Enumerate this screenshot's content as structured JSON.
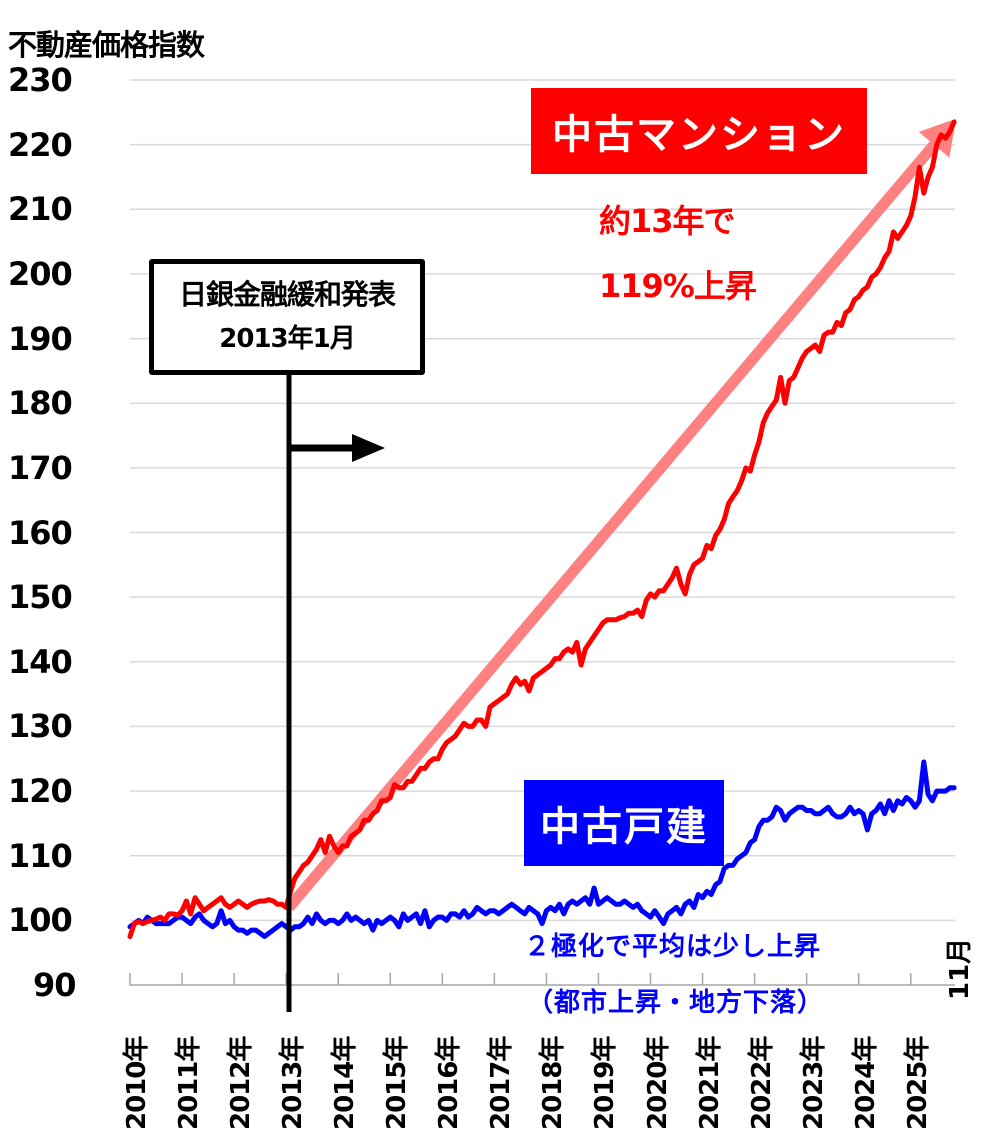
{
  "chart_data": {
    "type": "line",
    "title": "",
    "ylabel": "不動産価格指数",
    "xlabel": "",
    "ylim": [
      90,
      230
    ],
    "yticks": [
      230,
      220,
      210,
      200,
      190,
      180,
      170,
      160,
      150,
      140,
      130,
      120,
      110,
      100,
      90
    ],
    "xticks": [
      "2010年",
      "2011年",
      "2012年",
      "2013年",
      "2014年",
      "2015年",
      "2016年",
      "2017年",
      "2018年",
      "2019年",
      "2020年",
      "2021年",
      "2022年",
      "2023年",
      "2024年",
      "2025年"
    ],
    "x_end_label": "11月",
    "grid": true,
    "legend": "inline-badges",
    "x_frequency": "monthly, Jan 2010 – Nov 2025",
    "series": [
      {
        "name": "中古マンション",
        "color": "#ff0000",
        "values_by_year": {
          "2010": [
            97.5,
            99.5,
            99.8,
            99.5,
            99.8,
            100.0,
            100.2,
            100.5,
            100.0,
            101.0,
            101.0,
            100.8
          ],
          "2011": [
            101.5,
            103.0,
            101.0,
            103.5,
            102.5,
            101.5,
            102.0,
            102.5,
            103.0,
            103.5,
            102.5,
            102.0
          ],
          "2012": [
            102.5,
            103.0,
            102.5,
            102.0,
            102.5,
            102.8,
            103.0,
            103.0,
            103.2,
            103.0,
            102.5,
            102.5
          ],
          "2013": [
            102.0,
            104.5,
            106.5,
            107.5,
            108.5,
            109.0,
            110.0,
            111.0,
            112.5,
            110.5,
            113.0,
            111.5
          ],
          "2014": [
            110.5,
            111.5,
            111.5,
            113.0,
            113.5,
            114.0,
            115.5,
            115.5,
            116.5,
            117.0,
            118.5,
            118.5
          ],
          "2015": [
            119.0,
            121.0,
            120.5,
            120.5,
            121.5,
            121.5,
            122.5,
            123.5,
            123.5,
            124.5,
            125.0,
            125.0
          ],
          "2016": [
            126.5,
            127.5,
            128.0,
            128.5,
            129.5,
            130.5,
            130.0,
            130.0,
            131.0,
            131.0,
            130.0,
            133.0
          ],
          "2017": [
            133.5,
            134.0,
            134.5,
            135.0,
            136.5,
            137.5,
            136.5,
            137.0,
            135.5,
            137.5,
            138.0,
            138.5
          ],
          "2018": [
            139.0,
            139.5,
            140.5,
            140.5,
            141.5,
            142.0,
            141.5,
            143.0,
            139.5,
            142.0,
            143.0,
            144.0
          ],
          "2019": [
            145.0,
            146.0,
            146.5,
            146.5,
            146.5,
            146.8,
            147.0,
            147.5,
            147.5,
            148.0,
            147.0,
            149.5
          ],
          "2020": [
            150.5,
            150.0,
            151.0,
            151.0,
            152.0,
            153.0,
            154.5,
            152.0,
            150.5,
            153.5,
            155.0,
            155.5
          ],
          "2021": [
            156.0,
            158.0,
            157.5,
            159.5,
            160.5,
            162.0,
            164.5,
            165.5,
            166.5,
            168.0,
            170.0,
            169.5
          ],
          "2022": [
            172.0,
            174.0,
            177.0,
            178.5,
            179.5,
            180.5,
            184.0,
            180.0,
            183.5,
            184.0,
            185.5,
            187.0
          ],
          "2023": [
            188.0,
            188.5,
            189.0,
            188.0,
            190.5,
            191.0,
            191.0,
            192.5,
            192.0,
            194.0,
            194.5,
            196.0
          ],
          "2024": [
            196.5,
            197.5,
            198.0,
            199.5,
            200.0,
            201.0,
            202.5,
            203.5,
            206.5,
            205.5,
            206.5,
            207.5
          ],
          "2025": [
            209.0,
            212.0,
            216.5,
            212.5,
            215.0,
            216.5,
            220.0,
            221.5,
            221.0,
            222.0,
            223.5
          ]
        },
        "annotation": {
          "badge": "中古マンション",
          "text_line1": "約13年で",
          "text_line2": "119%上昇",
          "trend_arrow": {
            "from": [
              "2013-01",
              102
            ],
            "to": [
              "2025-11",
              224
            ],
            "color": "#ff8080"
          }
        }
      },
      {
        "name": "中古戸建",
        "color": "#0000ff",
        "values_by_year": {
          "2010": [
            99.0,
            99.5,
            100.0,
            99.5,
            100.5,
            100.0,
            99.5,
            99.5,
            99.5,
            99.5,
            100.0,
            100.5
          ],
          "2011": [
            100.5,
            100.0,
            99.5,
            100.5,
            101.0,
            100.0,
            99.5,
            99.0,
            99.5,
            101.5,
            99.5,
            100.0
          ],
          "2012": [
            99.0,
            98.5,
            98.5,
            98.0,
            98.5,
            98.5,
            98.0,
            97.5,
            98.0,
            98.5,
            99.0,
            99.5
          ],
          "2013": [
            99.0,
            98.5,
            99.0,
            99.0,
            99.5,
            100.5,
            99.5,
            101.0,
            100.0,
            99.5,
            100.0,
            100.0
          ],
          "2014": [
            99.5,
            100.0,
            101.0,
            100.0,
            100.5,
            100.0,
            99.5,
            100.0,
            98.5,
            100.0,
            99.5,
            100.0
          ],
          "2015": [
            100.5,
            100.0,
            99.0,
            101.0,
            100.0,
            100.5,
            101.0,
            99.5,
            101.5,
            99.0,
            100.0,
            100.5
          ],
          "2016": [
            100.5,
            100.0,
            101.0,
            101.0,
            100.5,
            101.5,
            100.5,
            101.0,
            102.0,
            101.5,
            101.0,
            101.5
          ],
          "2017": [
            101.5,
            101.0,
            101.5,
            102.0,
            102.5,
            102.0,
            101.5,
            101.0,
            102.0,
            101.5,
            101.0,
            99.5
          ],
          "2018": [
            101.5,
            102.0,
            101.5,
            102.5,
            101.0,
            102.5,
            103.0,
            102.5,
            103.0,
            103.5,
            102.5,
            105.0
          ],
          "2019": [
            102.5,
            103.0,
            103.5,
            103.0,
            102.5,
            102.5,
            103.0,
            102.5,
            102.0,
            102.5,
            101.5,
            101.0
          ],
          "2020": [
            100.5,
            101.5,
            100.5,
            99.5,
            101.0,
            101.5,
            102.0,
            101.0,
            102.5,
            103.0,
            102.0,
            104.0
          ],
          "2021": [
            103.5,
            104.5,
            104.0,
            105.5,
            106.0,
            108.0,
            108.5,
            108.5,
            109.5,
            110.0,
            110.5,
            112.0
          ],
          "2022": [
            112.5,
            114.5,
            115.5,
            115.5,
            116.0,
            117.5,
            117.0,
            115.5,
            116.5,
            117.0,
            117.5,
            117.5
          ],
          "2023": [
            117.0,
            117.0,
            116.5,
            116.5,
            117.0,
            117.5,
            116.5,
            116.0,
            116.0,
            116.5,
            117.5,
            116.5
          ],
          "2024": [
            117.0,
            116.5,
            114.0,
            116.5,
            117.0,
            118.0,
            116.5,
            118.5,
            117.0,
            118.5,
            118.0,
            119.0
          ],
          "2025": [
            118.5,
            117.5,
            118.5,
            124.5,
            119.5,
            118.5,
            120.0,
            120.0,
            120.0,
            120.5,
            120.5
          ]
        },
        "annotation": {
          "badge": "中古戸建",
          "text_line1": "２極化で平均は少し上昇",
          "text_line2": "（都市上昇・地方下落）"
        }
      }
    ],
    "event_marker": {
      "label_line1": "日銀金融緩和発表",
      "label_line2": "2013年1月",
      "x": "2013-01",
      "arrow_direction": "right"
    }
  },
  "axis": {
    "ytitle": "不動産価格指数",
    "yticks": [
      "230",
      "220",
      "210",
      "200",
      "190",
      "180",
      "170",
      "160",
      "150",
      "140",
      "130",
      "120",
      "110",
      "100",
      "90"
    ],
    "xticks": [
      "2010年",
      "2011年",
      "2012年",
      "2013年",
      "2014年",
      "2015年",
      "2016年",
      "2017年",
      "2018年",
      "2019年",
      "2020年",
      "2021年",
      "2022年",
      "2023年",
      "2024年",
      "2025年"
    ],
    "end_label": "11月"
  },
  "annotations": {
    "mansion_badge": "中古マンション",
    "mansion_note1": "約13年で",
    "mansion_note2": "119%上昇",
    "house_badge": "中古戸建",
    "house_note1": "２極化で平均は少し上昇",
    "house_note2": "（都市上昇・地方下落）",
    "boj_line1": "日銀金融緩和発表",
    "boj_line2": "2013年1月"
  },
  "colors": {
    "mansion": "#ff0000",
    "house": "#0000ff",
    "trend_arrow": "#ff8080",
    "grid": "#d9d9d9",
    "axis": "#a6a6a6",
    "marker": "#000000"
  }
}
